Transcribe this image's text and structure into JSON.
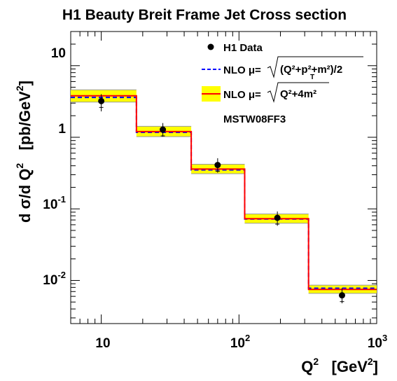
{
  "chart_data": {
    "type": "line",
    "title": "H1 Beauty Breit Frame Jet Cross section",
    "xlabel": "Q²   [GeV²]",
    "ylabel": "d σ/d Q²   [pb/GeV²]",
    "x_scale": "log",
    "y_scale": "log",
    "xlim": [
      6,
      1000
    ],
    "ylim": [
      0.0025,
      30
    ],
    "x_tick_labels": [
      "10",
      "10²",
      "10³"
    ],
    "y_tick_labels": [
      "10⁻²",
      "10⁻¹",
      "1",
      "10"
    ],
    "bins": [
      {
        "low": 6,
        "high": 18,
        "nlo_mu2": 3.8,
        "nlo_mu2_low": 3.1,
        "nlo_mu2_high": 4.6,
        "nlo_mu1": 3.6
      },
      {
        "low": 18,
        "high": 45,
        "nlo_mu2": 1.2,
        "nlo_mu2_low": 1.02,
        "nlo_mu2_high": 1.42,
        "nlo_mu1": 1.17
      },
      {
        "low": 45,
        "high": 110,
        "nlo_mu2": 0.36,
        "nlo_mu2_low": 0.31,
        "nlo_mu2_high": 0.42,
        "nlo_mu1": 0.35
      },
      {
        "low": 110,
        "high": 320,
        "nlo_mu2": 0.073,
        "nlo_mu2_low": 0.063,
        "nlo_mu2_high": 0.085,
        "nlo_mu1": 0.072
      },
      {
        "low": 320,
        "high": 1000,
        "nlo_mu2": 0.0075,
        "nlo_mu2_low": 0.0066,
        "nlo_mu2_high": 0.0086,
        "nlo_mu1": 0.0078
      }
    ],
    "series": [
      {
        "name": "H1 Data",
        "kind": "points",
        "x": [
          10,
          28,
          70,
          190,
          560
        ],
        "y": [
          3.2,
          1.28,
          0.41,
          0.075,
          0.0062
        ],
        "y_err_low": [
          2.3,
          1.02,
          0.32,
          0.058,
          0.0048
        ],
        "y_err_high": [
          4.0,
          1.58,
          0.51,
          0.092,
          0.0078
        ]
      },
      {
        "name": "NLO μ=√((Q²+p_T²+m²)/2)",
        "kind": "step",
        "color": "#0000ff",
        "style": "dashed"
      },
      {
        "name": "NLO μ=√(Q²+4m²)",
        "kind": "step-band",
        "color": "#ff0000",
        "band_color": "#ffff00"
      }
    ],
    "legend": {
      "placement": "top-right",
      "entries": [
        {
          "label": "H1 Data",
          "marker": "point"
        },
        {
          "label_text": "NLO μ=",
          "label_root": "(Q²+p²+m²)/2",
          "label_sub": "T",
          "marker": "dashed-blue"
        },
        {
          "label_text": "NLO μ=",
          "label_root": "Q²+4m²",
          "marker": "red-yellow-band"
        },
        {
          "label": "MSTW08FF3",
          "marker": "none"
        }
      ]
    },
    "grid": false
  }
}
